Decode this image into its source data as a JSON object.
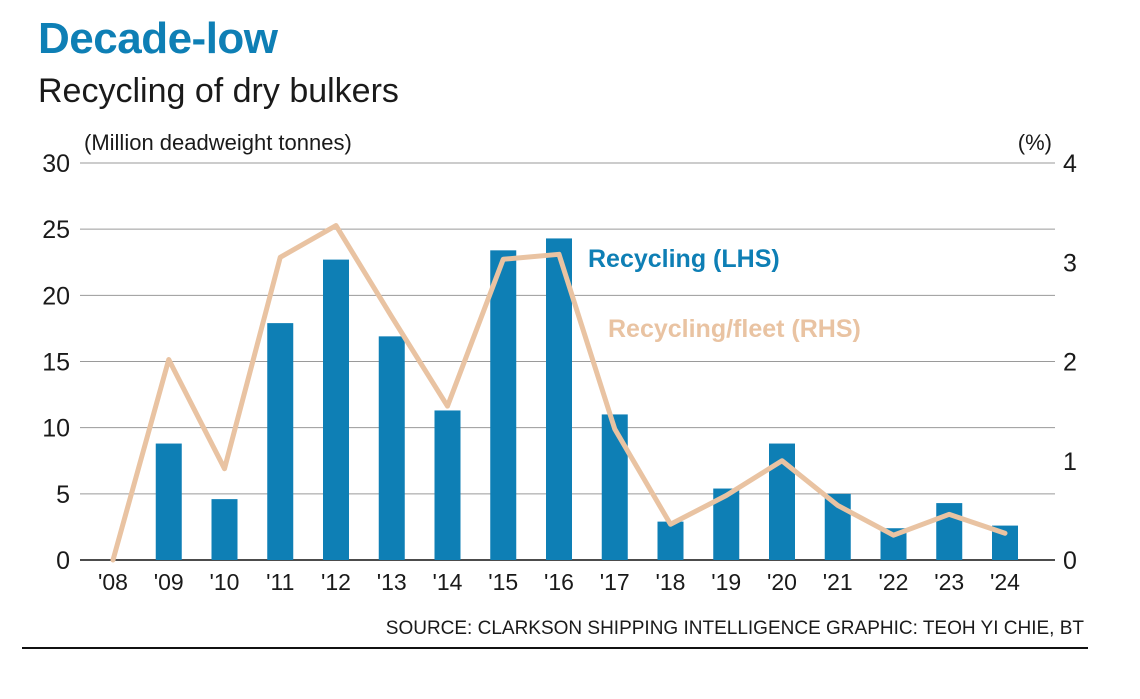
{
  "header": {
    "headline": "Decade-low",
    "subtitle": "Recycling of dry bulkers"
  },
  "footer": {
    "source": "SOURCE: CLARKSON SHIPPING INTELLIGENCE   GRAPHIC: TEOH YI CHIE, BT"
  },
  "colors": {
    "bar": "#0e7fb5",
    "line": "#e9c3a2",
    "grid": "#9a9a9a",
    "headline": "#0e7fb5"
  },
  "chart_data": {
    "type": "bar",
    "title": "Decade-low",
    "subtitle": "Recycling of dry bulkers",
    "ylabel": "(Million deadweight tonnes)",
    "y2label": "(%)",
    "ylim": [
      0,
      30
    ],
    "y2lim": [
      0,
      4
    ],
    "yticks": [
      0,
      5,
      10,
      15,
      20,
      25,
      30
    ],
    "y2ticks": [
      0,
      1,
      2,
      3,
      4
    ],
    "grid": true,
    "categories": [
      "'08",
      "'09",
      "'10",
      "'11",
      "'12",
      "'13",
      "'14",
      "'15",
      "'16",
      "'17",
      "'18",
      "'19",
      "'20",
      "'21",
      "'22",
      "'23",
      "'24"
    ],
    "series": [
      {
        "name": "Recycling (LHS)",
        "type": "bar",
        "axis": "left",
        "values": [
          0,
          8.8,
          4.6,
          17.9,
          22.7,
          16.9,
          11.3,
          23.4,
          24.3,
          11.0,
          2.9,
          5.4,
          8.8,
          5.0,
          2.4,
          4.3,
          2.6
        ]
      },
      {
        "name": "Recycling/fleet (RHS)",
        "type": "line",
        "axis": "right",
        "values": [
          0.0,
          2.02,
          0.92,
          3.05,
          3.37,
          2.45,
          1.55,
          3.03,
          3.08,
          1.32,
          0.36,
          0.65,
          1.0,
          0.55,
          0.25,
          0.46,
          0.27
        ]
      }
    ]
  }
}
